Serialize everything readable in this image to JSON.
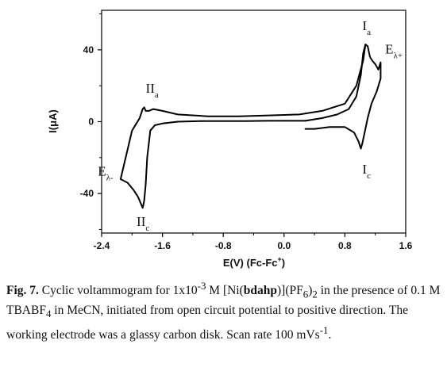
{
  "chart_data": {
    "type": "line",
    "xlabel_main": "E(V) (Fc-Fc",
    "xlabel_sup": "+",
    "xlabel_close": ")",
    "ylabel": "I(μA)",
    "xlim": [
      -2.4,
      1.6
    ],
    "ylim": [
      -62,
      62
    ],
    "x_ticks": [
      -2.4,
      -1.6,
      -0.8,
      0.0,
      0.8,
      1.6
    ],
    "x_tick_labels": [
      "-2.4",
      "-1.6",
      "-0.8",
      "0.0",
      "0.8",
      "1.6"
    ],
    "y_ticks": [
      40,
      0,
      -40
    ],
    "y_tick_labels": [
      "40",
      "0",
      "-40"
    ],
    "grid": false,
    "series": [
      {
        "color": "#000000",
        "x": [
          0.28,
          0.5,
          0.7,
          0.85,
          0.95,
          1.01,
          1.04,
          1.07,
          1.1,
          1.13,
          1.16,
          1.2,
          1.24,
          1.27,
          1.27,
          1.22,
          1.15,
          1.1,
          1.06,
          1.03,
          1.01,
          0.98,
          0.92,
          0.8,
          0.6,
          0.4,
          0.28,
          0.28,
          0.28
        ],
        "y": [
          0.5,
          2,
          4,
          7,
          14,
          26,
          38,
          43,
          42,
          36,
          34,
          32,
          29,
          33,
          24,
          17,
          10,
          2,
          -6,
          -12,
          -15,
          -11,
          -6,
          -3,
          -3,
          -4,
          -4,
          -4,
          -4
        ]
      },
      {
        "color": "#000000",
        "x": [
          0.28,
          0.1,
          -0.2,
          -0.5,
          -0.8,
          -1.1,
          -1.4,
          -1.6,
          -1.7,
          -1.76,
          -1.8,
          -1.82,
          -1.84,
          -1.86,
          -1.86,
          -1.88,
          -1.92,
          -1.98,
          -2.06,
          -2.15,
          -2.15,
          -2.0,
          -1.9,
          -1.86,
          -1.84,
          -1.82,
          -1.78,
          -1.72,
          -1.6,
          -1.4,
          -1.0,
          -0.6,
          -0.2,
          0.2,
          0.5,
          0.8,
          0.95,
          1.04,
          1.07
        ],
        "y": [
          0.5,
          0.5,
          0.5,
          0.3,
          0.3,
          0.3,
          0,
          -1,
          -2,
          -5,
          -20,
          -35,
          -44,
          -48,
          -48,
          -46,
          -42,
          -38,
          -34,
          -32,
          -32,
          -5,
          2,
          7,
          8,
          6,
          6,
          7,
          6,
          4,
          3,
          3,
          3.5,
          4,
          6,
          10,
          20,
          34,
          43
        ]
      }
    ],
    "annotations": [
      {
        "main": "I",
        "sub": "a",
        "x": 1.03,
        "y": 51
      },
      {
        "main": "E",
        "sub": "λ+",
        "x": 1.33,
        "y": 38
      },
      {
        "main": "II",
        "sub": "a",
        "x": -1.82,
        "y": 16
      },
      {
        "main": "I",
        "sub": "c",
        "x": 1.03,
        "y": -29
      },
      {
        "main": "E",
        "sub": "λ-",
        "x": -2.45,
        "y": -30
      },
      {
        "main": "II",
        "sub": "c",
        "x": -1.94,
        "y": -58
      }
    ]
  },
  "caption": {
    "label": "Fig. 7.",
    "t1": " Cyclic voltammogram for 1x10",
    "t1_sup": "-3",
    "t2": " M [Ni(",
    "t2_bold": "bdahp",
    "t3": ")](PF",
    "t3_sub": "6",
    "t4": ")",
    "t4_sub": "2",
    "t5": " in the presence of 0.1 M TBABF",
    "t5_sub": "4",
    "t6": " in MeCN, initiated from open circuit potential to positive direction. The working electrode was a glassy carbon disk. Scan rate 100 mVs",
    "t6_sup": "-1",
    "t7": "."
  }
}
